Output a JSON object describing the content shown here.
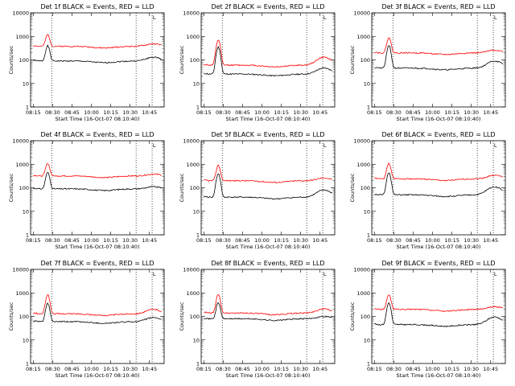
{
  "chart_data": [
    {
      "type": "line",
      "title": "Det 1f BLACK = Events, RED = LLD",
      "xlabel": "Start Time (16-Oct-07 08:10:40)",
      "ylabel": "Counts/sec",
      "x_ticks": [
        "08:15",
        "08:30",
        "08:45",
        "10:00",
        "10:15",
        "10:30",
        "10:45"
      ],
      "y_ticks": [
        "1",
        "10",
        "100",
        "1000",
        "10000"
      ],
      "ylim": [
        1,
        10000
      ],
      "yscale": "log",
      "legend_glyph": "L",
      "series": [
        {
          "name": "Events",
          "color": "#000000",
          "base": 90,
          "peak": 400,
          "end": 130
        },
        {
          "name": "LLD",
          "color": "#ff0000",
          "base": 380,
          "peak": 1200,
          "end": 480
        }
      ]
    },
    {
      "type": "line",
      "title": "Det 2f BLACK = Events, RED = LLD",
      "xlabel": "Start Time (16-Oct-07 08:10:40)",
      "ylabel": "Counts/sec",
      "x_ticks": [
        "08:15",
        "08:30",
        "08:45",
        "10:00",
        "10:15",
        "10:30",
        "10:45"
      ],
      "y_ticks": [
        "1",
        "10",
        "100",
        "1000",
        "10000"
      ],
      "ylim": [
        1,
        10000
      ],
      "yscale": "log",
      "legend_glyph": "L",
      "series": [
        {
          "name": "Events",
          "color": "#000000",
          "base": 25,
          "peak": 350,
          "end": 45
        },
        {
          "name": "LLD",
          "color": "#ff0000",
          "base": 60,
          "peak": 700,
          "end": 130
        }
      ]
    },
    {
      "type": "line",
      "title": "Det 3f BLACK = Events, RED = LLD",
      "xlabel": "Start Time (16-Oct-07 08:10:40)",
      "ylabel": "Counts/sec",
      "x_ticks": [
        "08:15",
        "08:30",
        "08:45",
        "10:00",
        "10:15",
        "10:30",
        "10:45"
      ],
      "y_ticks": [
        "1",
        "10",
        "100",
        "1000",
        "10000"
      ],
      "ylim": [
        1,
        10000
      ],
      "yscale": "log",
      "legend_glyph": "L",
      "series": [
        {
          "name": "Events",
          "color": "#000000",
          "base": 45,
          "peak": 400,
          "end": 90
        },
        {
          "name": "LLD",
          "color": "#ff0000",
          "base": 200,
          "peak": 900,
          "end": 260
        }
      ]
    },
    {
      "type": "line",
      "title": "Det 4f BLACK = Events, RED = LLD",
      "xlabel": "Start Time (16-Oct-07 08:10:40)",
      "ylabel": "Counts/sec",
      "x_ticks": [
        "08:15",
        "08:30",
        "08:45",
        "10:00",
        "10:15",
        "10:30",
        "10:45"
      ],
      "y_ticks": [
        "1",
        "10",
        "100",
        "1000",
        "10000"
      ],
      "ylim": [
        1,
        10000
      ],
      "yscale": "log",
      "legend_glyph": "L",
      "series": [
        {
          "name": "Events",
          "color": "#000000",
          "base": 90,
          "peak": 450,
          "end": 110
        },
        {
          "name": "LLD",
          "color": "#ff0000",
          "base": 320,
          "peak": 1100,
          "end": 380
        }
      ]
    },
    {
      "type": "line",
      "title": "Det 5f BLACK = Events, RED = LLD",
      "xlabel": "Start Time (16-Oct-07 08:10:40)",
      "ylabel": "Counts/sec",
      "x_ticks": [
        "08:15",
        "08:30",
        "08:45",
        "10:00",
        "10:15",
        "10:30",
        "10:45"
      ],
      "y_ticks": [
        "1",
        "10",
        "100",
        "1000",
        "10000"
      ],
      "ylim": [
        1,
        10000
      ],
      "yscale": "log",
      "legend_glyph": "L",
      "series": [
        {
          "name": "Events",
          "color": "#000000",
          "base": 40,
          "peak": 400,
          "end": 80
        },
        {
          "name": "LLD",
          "color": "#ff0000",
          "base": 200,
          "peak": 900,
          "end": 260
        }
      ]
    },
    {
      "type": "line",
      "title": "Det 6f BLACK = Events, RED = LLD",
      "xlabel": "Start Time (16-Oct-07 08:10:40)",
      "ylabel": "Counts/sec",
      "x_ticks": [
        "08:15",
        "08:30",
        "08:45",
        "10:00",
        "10:15",
        "10:30",
        "10:45"
      ],
      "y_ticks": [
        "1",
        "10",
        "100",
        "1000",
        "10000"
      ],
      "ylim": [
        1,
        10000
      ],
      "yscale": "log",
      "legend_glyph": "L",
      "series": [
        {
          "name": "Events",
          "color": "#000000",
          "base": 50,
          "peak": 450,
          "end": 110
        },
        {
          "name": "LLD",
          "color": "#ff0000",
          "base": 240,
          "peak": 1100,
          "end": 340
        }
      ]
    },
    {
      "type": "line",
      "title": "Det 7f BLACK = Events, RED = LLD",
      "xlabel": "Start Time (16-Oct-07 08:10:40)",
      "ylabel": "Counts/sec",
      "x_ticks": [
        "08:15",
        "08:30",
        "08:45",
        "10:00",
        "10:15",
        "10:30",
        "10:45"
      ],
      "y_ticks": [
        "1",
        "10",
        "100",
        "1000",
        "10000"
      ],
      "ylim": [
        1,
        10000
      ],
      "yscale": "log",
      "legend_glyph": "L",
      "series": [
        {
          "name": "Events",
          "color": "#000000",
          "base": 60,
          "peak": 350,
          "end": 90
        },
        {
          "name": "LLD",
          "color": "#ff0000",
          "base": 130,
          "peak": 850,
          "end": 200
        }
      ]
    },
    {
      "type": "line",
      "title": "Det 8f BLACK = Events, RED = LLD",
      "xlabel": "Start Time (16-Oct-07 08:10:40)",
      "ylabel": "Counts/sec",
      "x_ticks": [
        "08:15",
        "08:30",
        "08:45",
        "10:00",
        "10:15",
        "10:30",
        "10:45"
      ],
      "y_ticks": [
        "1",
        "10",
        "100",
        "1000",
        "10000"
      ],
      "ylim": [
        1,
        10000
      ],
      "yscale": "log",
      "legend_glyph": "L",
      "series": [
        {
          "name": "Events",
          "color": "#000000",
          "base": 80,
          "peak": 380,
          "end": 100
        },
        {
          "name": "LLD",
          "color": "#ff0000",
          "base": 140,
          "peak": 850,
          "end": 210
        }
      ]
    },
    {
      "type": "line",
      "title": "Det 9f BLACK = Events, RED = LLD",
      "xlabel": "Start Time (16-Oct-07 08:10:40)",
      "ylabel": "Counts/sec",
      "x_ticks": [
        "08:15",
        "08:30",
        "08:45",
        "10:00",
        "10:15",
        "10:30",
        "10:45"
      ],
      "y_ticks": [
        "1",
        "10",
        "100",
        "1000",
        "10000"
      ],
      "ylim": [
        1,
        10000
      ],
      "yscale": "log",
      "legend_glyph": "L",
      "series": [
        {
          "name": "Events",
          "color": "#000000",
          "base": 45,
          "peak": 380,
          "end": 95
        },
        {
          "name": "LLD",
          "color": "#ff0000",
          "base": 200,
          "peak": 850,
          "end": 260
        }
      ]
    }
  ]
}
